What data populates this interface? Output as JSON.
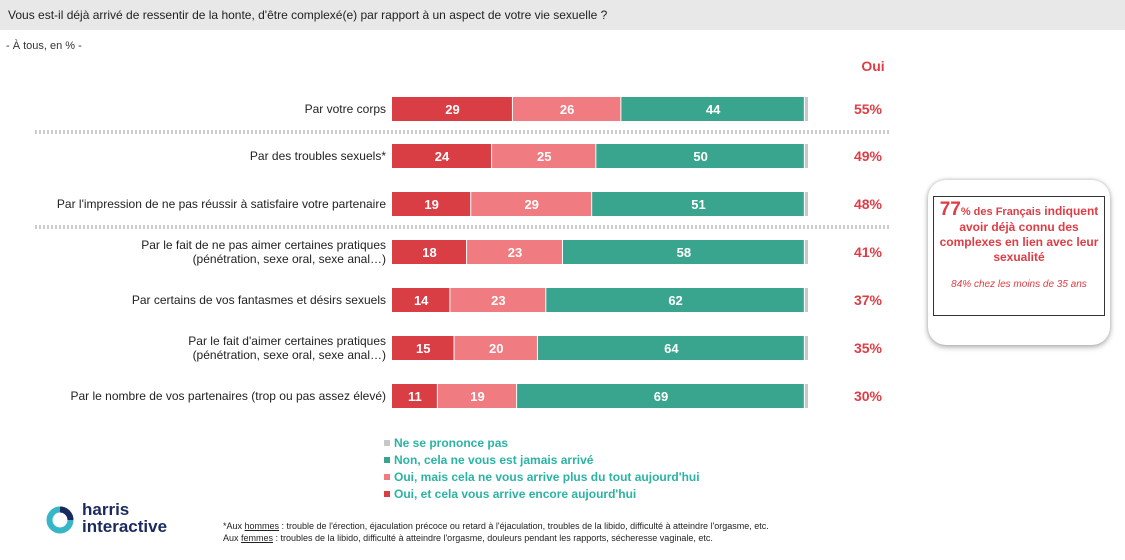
{
  "question": "Vous est-il déjà arrivé de ressentir de la honte, d'être complexé(e) par rapport à un aspect de votre vie sexuelle ?",
  "base": "- À tous, en % -",
  "oui_header": "Oui",
  "colors": {
    "encore": "#da3e45",
    "plus": "#f07b80",
    "jamais": "#3aa58f",
    "npp": "#c8c8c8",
    "oui_text": "#e03c44",
    "legend_text": "#2bb3a3"
  },
  "chart_data": {
    "type": "bar",
    "orientation": "horizontal",
    "stacked": true,
    "xlim": [
      0,
      100
    ],
    "categories": [
      [
        "Par votre corps"
      ],
      [
        "Par des troubles sexuels*"
      ],
      [
        "Par l'impression de ne pas réussir à satisfaire votre partenaire"
      ],
      [
        "Par le fait de ne pas aimer certaines pratiques",
        "(pénétration, sexe oral, sexe anal…)"
      ],
      [
        "Par certains de vos fantasmes et désirs sexuels"
      ],
      [
        "Par le fait d'aimer certaines pratiques",
        "(pénétration, sexe oral, sexe anal…)"
      ],
      [
        "Par le nombre de vos partenaires (trop ou pas assez élevé)"
      ]
    ],
    "series": [
      {
        "name": "Oui, et cela vous arrive encore aujourd'hui",
        "key": "encore",
        "values": [
          29,
          24,
          19,
          18,
          14,
          15,
          11
        ]
      },
      {
        "name": "Oui, mais cela ne vous arrive plus du tout aujourd'hui",
        "key": "plus",
        "values": [
          26,
          25,
          29,
          23,
          23,
          20,
          19
        ]
      },
      {
        "name": "Non, cela ne vous est jamais arrivé",
        "key": "jamais",
        "values": [
          44,
          50,
          51,
          58,
          62,
          64,
          69
        ]
      },
      {
        "name": "Ne se prononce pas",
        "key": "npp",
        "values": [
          1,
          1,
          1,
          1,
          1,
          1,
          1
        ]
      }
    ],
    "oui_totals": [
      "55%",
      "49%",
      "48%",
      "41%",
      "37%",
      "35%",
      "30%"
    ]
  },
  "legend_items": [
    {
      "label": "Ne se prononce pas",
      "key": "npp"
    },
    {
      "label": "Non, cela ne vous est jamais arrivé",
      "key": "jamais"
    },
    {
      "label": "Oui, mais cela ne vous arrive plus du tout aujourd'hui",
      "key": "plus"
    },
    {
      "label": "Oui, et cela vous arrive encore aujourd'hui",
      "key": "encore"
    }
  ],
  "callout": {
    "big": "77",
    "small": "% des Français",
    "rest": "indiquent avoir déjà connu des complexes en lien avec leur sexualité",
    "sub": "84% chez les moins de 35 ans"
  },
  "logo": {
    "line1": "harris",
    "line2": "interactive"
  },
  "footnote": {
    "l1_pre": "*Aux ",
    "l1_term": "hommes",
    "l1_rest": " : trouble de l'érection, éjaculation précoce ou retard à l'éjaculation, troubles de la libido, difficulté à atteindre l'orgasme, etc.",
    "l2_pre": "Aux ",
    "l2_term": "femmes",
    "l2_rest": " : troubles de la libido, difficulté à atteindre l'orgasme, douleurs pendant les rapports, sécheresse vaginale, etc."
  }
}
